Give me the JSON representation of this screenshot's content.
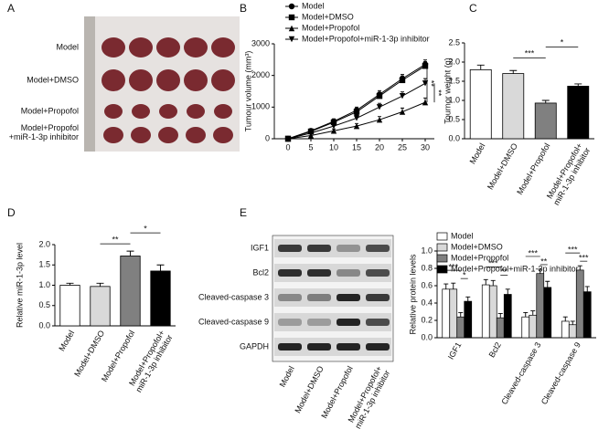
{
  "panel_a": {
    "label": "A",
    "rows": [
      "Model",
      "Model+DMSO",
      "Model+Propofol",
      "Model+Propofol\n+miR-1-3p inhibitor"
    ]
  },
  "panel_e_blot": {
    "label": "E",
    "rows": [
      "IGF1",
      "Bcl2",
      "Cleaved-caspase 3",
      "Cleaved-caspase 9",
      "GAPDH"
    ],
    "columns": [
      "Model",
      "Model+DMSO",
      "Model+Propofol",
      "Model+Propofol+\nmiR-1-3p inhibitor"
    ]
  },
  "chart_data": [
    {
      "type": "line",
      "panel_label": "B",
      "ylabel": "Tumour volume (mm³)",
      "x": [
        0,
        5,
        10,
        15,
        20,
        25,
        30
      ],
      "xlim": [
        -3,
        32
      ],
      "xticks": [
        0,
        5,
        10,
        15,
        20,
        25,
        30
      ],
      "ylim": [
        0,
        3000
      ],
      "yticks": [
        0,
        1000,
        2000,
        3000
      ],
      "series": [
        {
          "name": "Model",
          "marker": "circle",
          "color": "#000000",
          "values": [
            0,
            250,
            550,
            900,
            1400,
            1900,
            2350
          ],
          "errors": [
            0,
            60,
            80,
            100,
            120,
            130,
            140
          ]
        },
        {
          "name": "Model+DMSO",
          "marker": "square",
          "color": "#000000",
          "values": [
            0,
            230,
            520,
            850,
            1350,
            1850,
            2300
          ],
          "errors": [
            0,
            60,
            80,
            100,
            120,
            130,
            140
          ]
        },
        {
          "name": "Model+Propofol",
          "marker": "triangle-up",
          "color": "#000000",
          "values": [
            0,
            100,
            250,
            400,
            600,
            850,
            1150
          ],
          "errors": [
            0,
            50,
            60,
            80,
            100,
            120,
            140
          ]
        },
        {
          "name": "Model+Propofol+miR-1-3p inhibitor",
          "marker": "triangle-down",
          "color": "#000000",
          "values": [
            0,
            180,
            400,
            650,
            1000,
            1350,
            1750
          ],
          "errors": [
            0,
            60,
            80,
            100,
            120,
            130,
            150
          ]
        }
      ],
      "annotations": [
        "**",
        "**"
      ]
    },
    {
      "type": "bar",
      "panel_label": "C",
      "ylabel": "Tournor weight (g)",
      "categories": [
        "Model",
        "Model+DMSO",
        "Model+Propofol",
        "Model+Propofol+\nmiR-1-3p inhibitor"
      ],
      "values": [
        1.8,
        1.7,
        0.93,
        1.37
      ],
      "errors": [
        0.12,
        0.08,
        0.07,
        0.06
      ],
      "colors": [
        "#ffffff",
        "#d9d9d9",
        "#808080",
        "#000000"
      ],
      "ylim": [
        0,
        2.5
      ],
      "yticks": [
        {
          "value": 0,
          "label": "0.0"
        },
        {
          "value": 0.5,
          "label": "0.5"
        },
        {
          "value": 1,
          "label": "1.0"
        },
        {
          "value": 1.5,
          "label": "1.5"
        },
        {
          "value": 2,
          "label": "2.0"
        },
        {
          "value": 2.5,
          "label": "2.5"
        }
      ],
      "annotations": [
        "***",
        "*"
      ]
    },
    {
      "type": "bar",
      "panel_label": "D",
      "ylabel": "Relative miR-1-3p  level",
      "categories": [
        "Model",
        "Model+DMSO",
        "Model+Propofol",
        "Model+Propofol+\nmiR-1-3p inhibitor"
      ],
      "values": [
        1.0,
        0.97,
        1.72,
        1.35
      ],
      "errors": [
        0.05,
        0.08,
        0.12,
        0.15
      ],
      "colors": [
        "#ffffff",
        "#d9d9d9",
        "#808080",
        "#000000"
      ],
      "ylim": [
        0,
        2
      ],
      "yticks": [
        {
          "value": 0,
          "label": "0.0"
        },
        {
          "value": 0.5,
          "label": "0.5"
        },
        {
          "value": 1,
          "label": "1.0"
        },
        {
          "value": 1.5,
          "label": "1.5"
        },
        {
          "value": 2,
          "label": "2.0"
        }
      ],
      "annotations": [
        "**",
        "*"
      ]
    },
    {
      "type": "grouped-bar",
      "ylabel": "Relative protein levels",
      "categories": [
        "IGF1",
        "Bcl2",
        "Cleaved-caspase 3",
        "Cleaved-caspase 9"
      ],
      "series": [
        {
          "name": "Model",
          "color": "#ffffff",
          "values": [
            0.56,
            0.61,
            0.24,
            0.19
          ],
          "errors": [
            0.06,
            0.06,
            0.05,
            0.05
          ]
        },
        {
          "name": "Model+DMSO",
          "color": "#d9d9d9",
          "values": [
            0.56,
            0.6,
            0.26,
            0.15
          ],
          "errors": [
            0.07,
            0.06,
            0.05,
            0.04
          ]
        },
        {
          "name": "Model+Propofol",
          "color": "#808080",
          "values": [
            0.24,
            0.23,
            0.74,
            0.78
          ],
          "errors": [
            0.05,
            0.05,
            0.05,
            0.05
          ]
        },
        {
          "name": "Model+Propofol+miR-1-3p inhibitor",
          "color": "#000000",
          "values": [
            0.42,
            0.5,
            0.58,
            0.53
          ],
          "errors": [
            0.05,
            0.06,
            0.07,
            0.06
          ]
        }
      ],
      "ylim": [
        0,
        1
      ],
      "yticks": [
        {
          "value": 0,
          "label": "0.0"
        },
        {
          "value": 0.2,
          "label": "0.2"
        },
        {
          "value": 0.4,
          "label": "0.4"
        },
        {
          "value": 0.6,
          "label": "0.6"
        },
        {
          "value": 0.8,
          "label": "0.8"
        },
        {
          "value": 1,
          "label": "1.0"
        }
      ],
      "annotations": [
        [
          "***",
          "*"
        ],
        [
          "***",
          "**"
        ],
        [
          "***",
          "**"
        ],
        [
          "***",
          "***"
        ]
      ]
    }
  ]
}
